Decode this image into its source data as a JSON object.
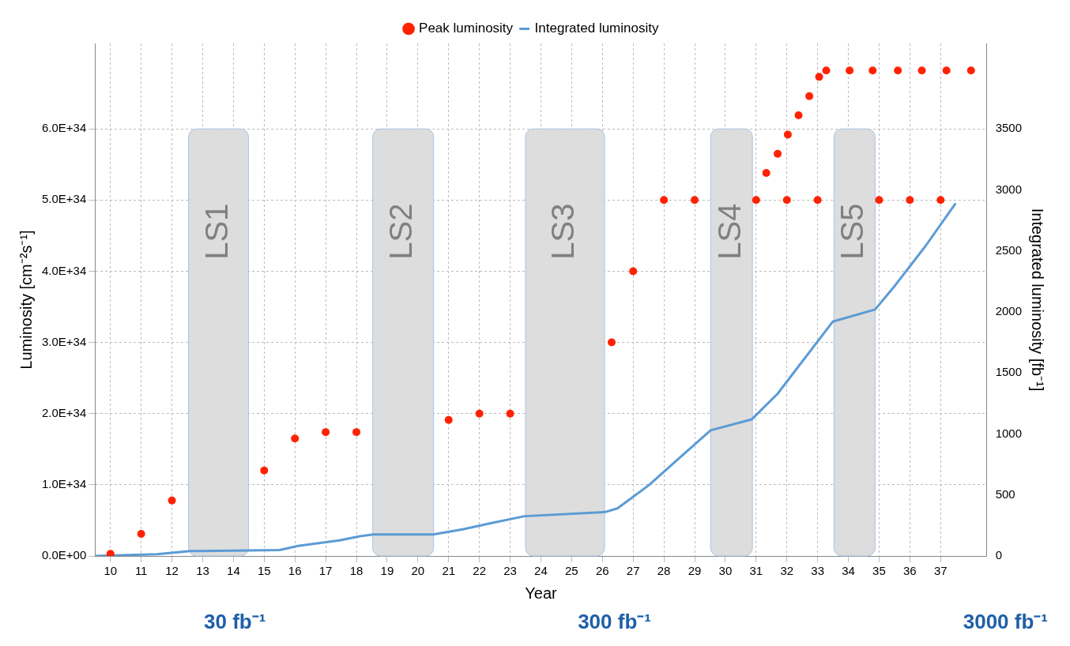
{
  "chart_data": {
    "type": "scatter",
    "xlabel": "Year",
    "ylabel": "Luminosity [cm⁻²s⁻¹]",
    "y2label": "Integrated luminosity [fb⁻¹]",
    "xlim": [
      9.5,
      38.5
    ],
    "xticks": [
      10,
      11,
      12,
      13,
      14,
      15,
      16,
      17,
      18,
      19,
      20,
      21,
      22,
      23,
      24,
      25,
      26,
      27,
      28,
      29,
      30,
      31,
      32,
      33,
      34,
      35,
      36,
      37
    ],
    "ylim": [
      0,
      7.2e+34
    ],
    "yticks": [
      {
        "value": 0,
        "label": "0.0E+00"
      },
      {
        "value": 1e+34,
        "label": "1.0E+34"
      },
      {
        "value": 2e+34,
        "label": "2.0E+34"
      },
      {
        "value": 3e+34,
        "label": "3.0E+34"
      },
      {
        "value": 4e+34,
        "label": "4.0E+34"
      },
      {
        "value": 5e+34,
        "label": "5.0E+34"
      },
      {
        "value": 6e+34,
        "label": "6.0E+34"
      }
    ],
    "y2lim": [
      0,
      4200
    ],
    "y2ticks": [
      0,
      500,
      1000,
      1500,
      2000,
      2500,
      3000,
      3500
    ],
    "grid": true,
    "legend": "top",
    "series": [
      {
        "name": "Peak luminosity",
        "marker": "circle",
        "color": "#ff2200",
        "x": [
          10,
          11,
          12,
          15,
          16,
          17,
          18,
          21,
          22,
          23,
          26.3,
          27,
          28,
          29,
          31,
          32,
          33,
          35,
          36,
          37
        ],
        "values": [
          3e+32,
          3.1e+33,
          7.8e+33,
          1.2e+34,
          1.65e+34,
          1.74e+34,
          1.74e+34,
          1.91e+34,
          2e+34,
          2e+34,
          3e+34,
          4e+34,
          5e+34,
          5e+34,
          5e+34,
          5e+34,
          5e+34,
          5e+34,
          5e+34,
          5e+34
        ]
      },
      {
        "marker": "circle",
        "color": "#ff2200",
        "x": [
          31.33,
          31.7,
          32.03,
          32.38,
          32.73,
          33.05,
          33.28,
          34.04,
          34.79,
          35.61,
          36.39,
          37.19,
          37.99
        ],
        "values": [
          5.38e+34,
          5.65e+34,
          5.92e+34,
          6.19e+34,
          6.46e+34,
          6.73e+34,
          6.82e+34,
          6.82e+34,
          6.82e+34,
          6.82e+34,
          6.82e+34,
          6.82e+34,
          6.82e+34
        ]
      },
      {
        "name": "Integrated luminosity",
        "type": "line",
        "marker": "none",
        "axis": "y2",
        "color": "#5b9bd5",
        "x": [
          9.52,
          11.52,
          12.6,
          14.5,
          15.5,
          16.1,
          17.45,
          18.12,
          18.55,
          20.5,
          21.46,
          22.4,
          23.47,
          26.09,
          26.49,
          27.51,
          28.49,
          29.52,
          30.86,
          31.7,
          33.49,
          34.87,
          35.53,
          36.51,
          37.49
        ],
        "values": [
          0,
          15,
          40,
          45,
          48,
          82,
          128,
          162,
          176,
          176,
          218,
          270,
          326,
          360,
          390,
          580,
          800,
          1030,
          1120,
          1330,
          1920,
          2020,
          2220,
          2540,
          2890
        ]
      }
    ],
    "bands": [
      {
        "axis": "x",
        "from": 12.54,
        "to": 14.49,
        "label": "LS1",
        "color": "#dddddd"
      },
      {
        "axis": "x",
        "from": 18.53,
        "to": 20.51,
        "label": "LS2",
        "color": "#dddddd"
      },
      {
        "axis": "x",
        "from": 23.5,
        "to": 26.07,
        "label": "LS3",
        "color": "#dddddd"
      },
      {
        "axis": "x",
        "from": 29.52,
        "to": 30.88,
        "label": "LS4",
        "color": "#dddddd"
      },
      {
        "axis": "x",
        "from": 33.53,
        "to": 34.87,
        "label": "LS5",
        "color": "#dddddd"
      }
    ],
    "annotations": [
      "30 fb⁻¹",
      "300 fb⁻¹",
      "3000 fb⁻¹"
    ]
  }
}
